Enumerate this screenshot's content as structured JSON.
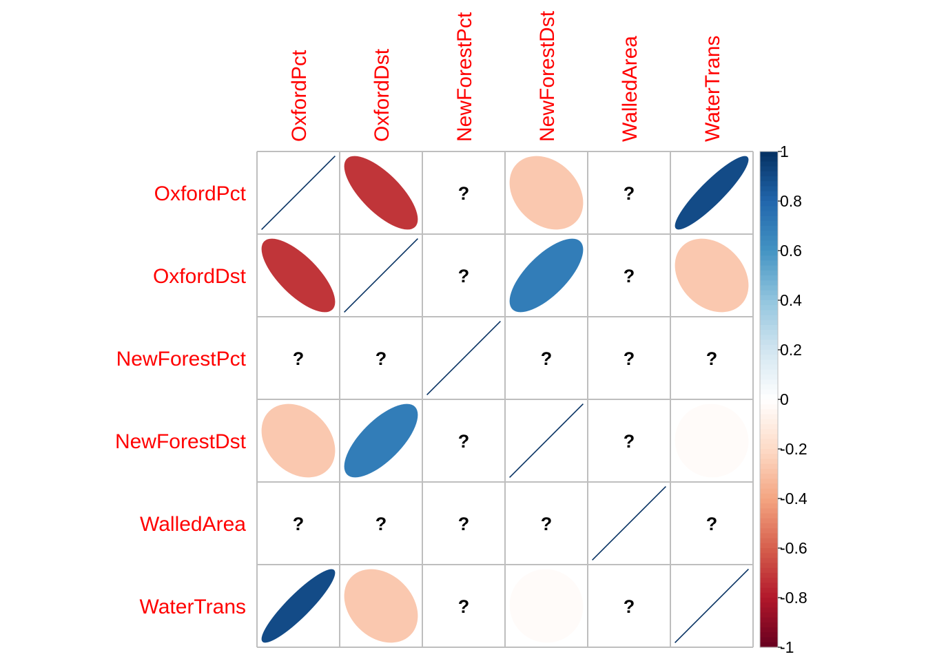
{
  "chart_data": {
    "type": "heatmap",
    "method": "ellipse",
    "variables": [
      "OxfordPct",
      "OxfordDst",
      "NewForestPct",
      "NewForestDst",
      "WalledArea",
      "WaterTrans"
    ],
    "matrix": [
      [
        1,
        -0.72,
        null,
        -0.27,
        null,
        0.9
      ],
      [
        -0.72,
        1,
        null,
        0.7,
        null,
        -0.27
      ],
      [
        null,
        null,
        1,
        null,
        null,
        null
      ],
      [
        -0.27,
        0.7,
        null,
        1,
        null,
        -0.02
      ],
      [
        null,
        null,
        null,
        null,
        1,
        null
      ],
      [
        0.9,
        -0.27,
        null,
        -0.02,
        null,
        1
      ]
    ],
    "missing_symbol": "?",
    "colorbar": {
      "range": [
        -1,
        1
      ],
      "ticks": [
        "1",
        "0.8",
        "0.6",
        "0.4",
        "0.2",
        "0",
        "-0.2",
        "-0.4",
        "-0.6",
        "-0.8",
        "-1"
      ]
    },
    "label_color": "#FF0000",
    "grid_color": "#BEBEBE"
  }
}
